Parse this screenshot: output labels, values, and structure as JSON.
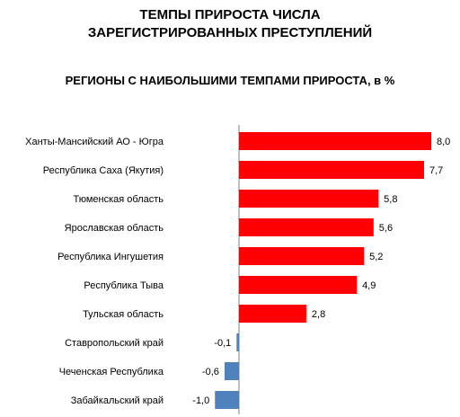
{
  "chart_data": {
    "type": "bar",
    "orientation": "horizontal",
    "title_lines": [
      "ТЕМПЫ ПРИРОСТА ЧИСЛА",
      "ЗАРЕГИСТРИРОВАННЫХ ПРЕСТУПЛЕНИЙ"
    ],
    "subtitle": "РЕГИОНЫ С НАИБОЛЬШИМИ ТЕМПАМИ ПРИРОСТА, в %",
    "categories": [
      "Ханты-Мансийский АО - Югра",
      "Республика Саха (Якутия)",
      "Тюменская область",
      "Ярославская область",
      "Республика Ингушетия",
      "Республика Тыва",
      "Тульская область",
      "Ставропольский край",
      "Чеченская Республика",
      "Забайкальский край"
    ],
    "values": [
      8.0,
      7.7,
      5.8,
      5.6,
      5.2,
      4.9,
      2.8,
      -0.1,
      -0.6,
      -1.0
    ],
    "value_labels": [
      "8,0",
      "7,7",
      "5,8",
      "5,6",
      "5,2",
      "4,9",
      "2,8",
      "-0,1",
      "-0,6",
      "-1,0"
    ],
    "positive_color": "#ff0000",
    "negative_color": "#4f81bd",
    "grid": false,
    "legend": "none"
  }
}
